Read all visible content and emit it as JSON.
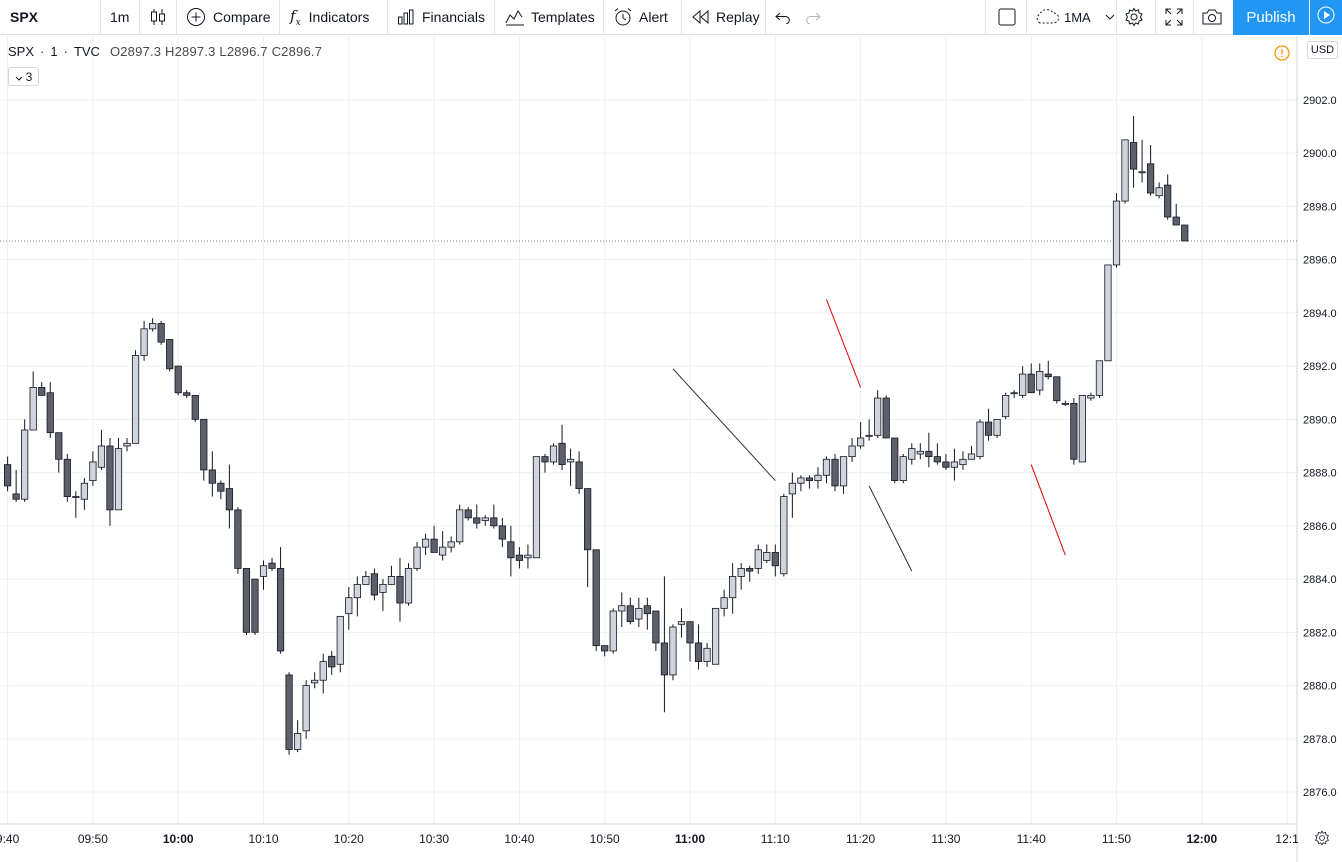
{
  "toolbar": {
    "symbol": "SPX",
    "interval": "1m",
    "compare": "Compare",
    "indicators": "Indicators",
    "financials": "Financials",
    "templates": "Templates",
    "alert": "Alert",
    "replay": "Replay",
    "layout_name": "1MA",
    "publish": "Publish"
  },
  "legend": {
    "symbol": "SPX",
    "sep1": "·",
    "interval": "1",
    "sep2": "·",
    "source": "TVC",
    "ohlc": "O2897.3 H2897.3 L2896.7 C2896.7",
    "indicator_count": "3"
  },
  "price_axis": {
    "currency": "USD"
  },
  "chart_data": {
    "type": "candlestick",
    "symbol": "SPX",
    "currency": "USD",
    "ylim": [
      2874.8,
      2904.4
    ],
    "y_ticks": [
      2876.0,
      2878.0,
      2880.0,
      2882.0,
      2884.0,
      2886.0,
      2888.0,
      2890.0,
      2892.0,
      2894.0,
      2896.0,
      2898.0,
      2900.0,
      2902.0
    ],
    "x_ticks": [
      "9:40",
      "09:50",
      "10:00",
      "10:10",
      "10:20",
      "10:30",
      "10:40",
      "10:50",
      "11:00",
      "11:10",
      "11:20",
      "11:30",
      "11:40",
      "11:50",
      "12:00",
      "12:1"
    ],
    "x_ticks_bold": [
      "10:00",
      "11:00",
      "12:00"
    ],
    "first_bar_time": "09:40",
    "last_price": 2896.7,
    "candles": [
      [
        2888.3,
        2888.6,
        2887.3,
        2887.5
      ],
      [
        2887.2,
        2888.1,
        2886.9,
        2887.0
      ],
      [
        2887.0,
        2890.0,
        2886.9,
        2889.6
      ],
      [
        2889.6,
        2891.8,
        2889.6,
        2891.2
      ],
      [
        2891.2,
        2891.4,
        2890.9,
        2890.9
      ],
      [
        2891.0,
        2891.4,
        2889.3,
        2889.5
      ],
      [
        2889.5,
        2889.5,
        2888.0,
        2888.5
      ],
      [
        2888.5,
        2888.7,
        2886.9,
        2887.1
      ],
      [
        2887.1,
        2887.3,
        2886.3,
        2887.1
      ],
      [
        2887.0,
        2887.8,
        2886.6,
        2887.6
      ],
      [
        2887.7,
        2888.8,
        2887.5,
        2888.4
      ],
      [
        2888.2,
        2889.6,
        2888.1,
        2889.0
      ],
      [
        2889.0,
        2889.3,
        2886.0,
        2886.6
      ],
      [
        2886.6,
        2889.3,
        2886.6,
        2888.9
      ],
      [
        2889.0,
        2889.3,
        2888.8,
        2889.1
      ],
      [
        2889.1,
        2892.6,
        2889.1,
        2892.4
      ],
      [
        2892.4,
        2893.7,
        2892.2,
        2893.4
      ],
      [
        2893.4,
        2893.8,
        2893.3,
        2893.6
      ],
      [
        2893.6,
        2893.7,
        2892.8,
        2892.9
      ],
      [
        2893.0,
        2893.0,
        2891.8,
        2891.9
      ],
      [
        2892.0,
        2892.0,
        2890.9,
        2891.0
      ],
      [
        2891.0,
        2891.1,
        2890.8,
        2890.9
      ],
      [
        2890.9,
        2890.9,
        2889.9,
        2890.0
      ],
      [
        2890.0,
        2890.0,
        2887.7,
        2888.1
      ],
      [
        2888.1,
        2888.8,
        2887.1,
        2887.6
      ],
      [
        2887.6,
        2887.7,
        2887.0,
        2887.3
      ],
      [
        2887.4,
        2888.3,
        2885.9,
        2886.6
      ],
      [
        2886.6,
        2886.7,
        2884.2,
        2884.4
      ],
      [
        2884.4,
        2884.4,
        2881.9,
        2882.0
      ],
      [
        2884.0,
        2884.0,
        2881.9,
        2882.0
      ],
      [
        2884.1,
        2884.7,
        2883.6,
        2884.5
      ],
      [
        2884.6,
        2884.8,
        2884.3,
        2884.4
      ],
      [
        2884.4,
        2885.2,
        2881.2,
        2881.3
      ],
      [
        2880.4,
        2880.5,
        2877.4,
        2877.6
      ],
      [
        2877.6,
        2878.7,
        2877.5,
        2878.2
      ],
      [
        2878.3,
        2880.2,
        2878.0,
        2880.0
      ],
      [
        2880.1,
        2880.5,
        2879.9,
        2880.2
      ],
      [
        2880.2,
        2881.2,
        2879.7,
        2880.9
      ],
      [
        2881.1,
        2881.3,
        2880.4,
        2880.7
      ],
      [
        2880.8,
        2882.6,
        2880.5,
        2882.6
      ],
      [
        2882.7,
        2883.7,
        2882.1,
        2883.3
      ],
      [
        2883.3,
        2884.1,
        2882.6,
        2883.8
      ],
      [
        2883.8,
        2884.3,
        2883.8,
        2884.1
      ],
      [
        2884.2,
        2884.4,
        2883.2,
        2883.4
      ],
      [
        2883.5,
        2884.0,
        2882.8,
        2883.8
      ],
      [
        2883.8,
        2884.5,
        2883.8,
        2884.1
      ],
      [
        2884.1,
        2884.8,
        2882.4,
        2883.1
      ],
      [
        2883.1,
        2884.6,
        2883.0,
        2884.4
      ],
      [
        2884.4,
        2885.4,
        2884.3,
        2885.2
      ],
      [
        2885.2,
        2885.7,
        2884.9,
        2885.5
      ],
      [
        2885.5,
        2886.0,
        2885.0,
        2885.0
      ],
      [
        2884.9,
        2885.8,
        2884.7,
        2885.2
      ],
      [
        2885.2,
        2885.6,
        2885.0,
        2885.4
      ],
      [
        2885.4,
        2886.8,
        2885.3,
        2886.6
      ],
      [
        2886.6,
        2886.7,
        2886.2,
        2886.3
      ],
      [
        2886.3,
        2886.8,
        2885.9,
        2886.1
      ],
      [
        2886.2,
        2886.4,
        2886.0,
        2886.3
      ],
      [
        2886.3,
        2886.8,
        2885.9,
        2886.0
      ],
      [
        2886.0,
        2886.3,
        2885.2,
        2885.5
      ],
      [
        2885.4,
        2886.0,
        2884.1,
        2884.8
      ],
      [
        2884.9,
        2885.2,
        2884.4,
        2884.7
      ],
      [
        2884.8,
        2885.3,
        2884.4,
        2884.9
      ],
      [
        2884.8,
        2888.6,
        2884.8,
        2888.6
      ],
      [
        2888.6,
        2888.7,
        2888.0,
        2888.4
      ],
      [
        2888.4,
        2889.1,
        2888.3,
        2889.0
      ],
      [
        2889.1,
        2889.8,
        2888.1,
        2888.3
      ],
      [
        2888.4,
        2888.9,
        2887.5,
        2888.5
      ],
      [
        2888.4,
        2888.8,
        2887.2,
        2887.4
      ],
      [
        2887.4,
        2887.4,
        2883.7,
        2885.1
      ],
      [
        2885.1,
        2885.1,
        2881.3,
        2881.5
      ],
      [
        2881.5,
        2881.5,
        2881.1,
        2881.3
      ],
      [
        2881.3,
        2882.9,
        2881.2,
        2882.8
      ],
      [
        2882.8,
        2883.5,
        2882.2,
        2883.0
      ],
      [
        2883.0,
        2883.3,
        2882.3,
        2882.4
      ],
      [
        2882.5,
        2883.3,
        2882.2,
        2882.9
      ],
      [
        2883.0,
        2883.3,
        2882.1,
        2882.7
      ],
      [
        2882.8,
        2882.8,
        2881.3,
        2881.6
      ],
      [
        2881.6,
        2884.1,
        2879.0,
        2880.4
      ],
      [
        2880.4,
        2882.3,
        2880.2,
        2882.2
      ],
      [
        2882.3,
        2882.9,
        2881.8,
        2882.4
      ],
      [
        2882.4,
        2882.4,
        2880.9,
        2881.6
      ],
      [
        2881.6,
        2882.3,
        2880.6,
        2880.9
      ],
      [
        2880.9,
        2881.6,
        2880.7,
        2881.4
      ],
      [
        2880.8,
        2882.9,
        2880.8,
        2882.9
      ],
      [
        2882.9,
        2883.6,
        2882.6,
        2883.3
      ],
      [
        2883.3,
        2884.6,
        2882.7,
        2884.1
      ],
      [
        2884.1,
        2884.6,
        2883.6,
        2884.4
      ],
      [
        2884.4,
        2884.5,
        2883.9,
        2884.3
      ],
      [
        2884.4,
        2885.3,
        2884.2,
        2885.1
      ],
      [
        2884.7,
        2885.3,
        2884.6,
        2885.0
      ],
      [
        2885.0,
        2885.3,
        2884.1,
        2884.5
      ],
      [
        2884.2,
        2887.2,
        2884.1,
        2887.1
      ],
      [
        2887.2,
        2888.0,
        2886.3,
        2887.6
      ],
      [
        2887.6,
        2887.9,
        2887.3,
        2887.8
      ],
      [
        2887.8,
        2887.9,
        2887.4,
        2887.7
      ],
      [
        2887.7,
        2888.2,
        2887.4,
        2887.9
      ],
      [
        2887.9,
        2888.6,
        2887.6,
        2888.5
      ],
      [
        2888.5,
        2888.7,
        2887.3,
        2887.5
      ],
      [
        2887.5,
        2888.6,
        2887.2,
        2888.6
      ],
      [
        2888.6,
        2889.3,
        2888.4,
        2889.0
      ],
      [
        2889.0,
        2889.9,
        2888.9,
        2889.3
      ],
      [
        2889.4,
        2890.0,
        2889.2,
        2889.4
      ],
      [
        2889.4,
        2891.1,
        2889.3,
        2890.8
      ],
      [
        2890.8,
        2890.9,
        2889.3,
        2889.3
      ],
      [
        2889.3,
        2889.3,
        2887.6,
        2887.7
      ],
      [
        2887.7,
        2888.7,
        2887.6,
        2888.6
      ],
      [
        2888.5,
        2889.1,
        2888.3,
        2888.9
      ],
      [
        2888.7,
        2889.1,
        2888.5,
        2888.8
      ],
      [
        2888.8,
        2889.5,
        2888.2,
        2888.6
      ],
      [
        2888.6,
        2889.1,
        2888.3,
        2888.4
      ],
      [
        2888.4,
        2888.7,
        2888.1,
        2888.2
      ],
      [
        2888.2,
        2888.9,
        2887.7,
        2888.4
      ],
      [
        2888.3,
        2888.8,
        2888.1,
        2888.5
      ],
      [
        2888.5,
        2889.0,
        2888.5,
        2888.7
      ],
      [
        2888.6,
        2890.0,
        2888.5,
        2889.9
      ],
      [
        2889.9,
        2890.4,
        2889.2,
        2889.4
      ],
      [
        2889.4,
        2890.0,
        2889.3,
        2890.0
      ],
      [
        2890.1,
        2891.0,
        2890.0,
        2890.9
      ],
      [
        2891.0,
        2891.1,
        2890.8,
        2891.0
      ],
      [
        2890.9,
        2892.0,
        2890.8,
        2891.7
      ],
      [
        2891.7,
        2892.1,
        2891.0,
        2891.0
      ],
      [
        2891.1,
        2892.1,
        2890.9,
        2891.8
      ],
      [
        2891.7,
        2892.2,
        2891.5,
        2891.6
      ],
      [
        2891.6,
        2891.6,
        2890.6,
        2890.7
      ],
      [
        2890.6,
        2890.7,
        2890.5,
        2890.6
      ],
      [
        2890.6,
        2890.8,
        2888.3,
        2888.5
      ],
      [
        2888.4,
        2890.8,
        2888.4,
        2890.9
      ],
      [
        2890.8,
        2891.0,
        2890.7,
        2890.9
      ],
      [
        2890.9,
        2892.2,
        2890.8,
        2892.2
      ],
      [
        2892.2,
        2895.8,
        2892.2,
        2895.8
      ],
      [
        2895.8,
        2898.5,
        2895.7,
        2898.2
      ],
      [
        2898.2,
        2900.5,
        2898.1,
        2900.5
      ],
      [
        2900.4,
        2901.4,
        2898.7,
        2899.4
      ],
      [
        2899.3,
        2900.5,
        2898.9,
        2899.3
      ],
      [
        2899.6,
        2900.3,
        2898.4,
        2898.5
      ],
      [
        2898.4,
        2898.9,
        2898.3,
        2898.7
      ],
      [
        2898.8,
        2899.2,
        2897.5,
        2897.6
      ],
      [
        2897.6,
        2898.1,
        2897.3,
        2897.3
      ],
      [
        2897.3,
        2897.3,
        2896.7,
        2896.7
      ]
    ],
    "trend_lines": [
      {
        "color": "#333333",
        "from": [
          "10:58",
          2891.9
        ],
        "to": [
          "11:10",
          2887.7
        ]
      },
      {
        "color": "#e00000",
        "from": [
          "11:16",
          2894.5
        ],
        "to": [
          "11:20",
          2891.2
        ]
      },
      {
        "color": "#333333",
        "from": [
          "11:21",
          2887.5
        ],
        "to": [
          "11:26",
          2884.3
        ]
      },
      {
        "color": "#e00000",
        "from": [
          "11:40",
          2888.3
        ],
        "to": [
          "11:44",
          2884.9
        ]
      }
    ]
  }
}
